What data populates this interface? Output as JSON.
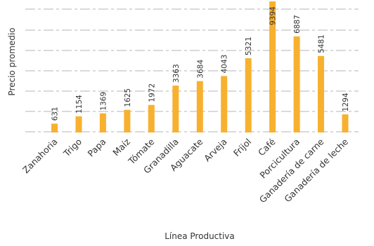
{
  "chart_data": {
    "type": "bar",
    "title": "",
    "xlabel": "Línea Productiva",
    "ylabel": "Precio promedio",
    "ylim": [
      0,
      9394
    ],
    "grid": true,
    "legend": "none",
    "bar_color": "#F7B12F",
    "grid_color": "#B5B5B5",
    "categories": [
      "Zanahoria",
      "Trigo",
      "Papa",
      "Maíz",
      "Tómate",
      "Granadilla",
      "Aguacate",
      "Arveja",
      "Frijol",
      "Café",
      "Porcicultura",
      "Ganadería de carne",
      "Ganadería de leche"
    ],
    "values": [
      631,
      1154,
      1369,
      1625,
      1972,
      3363,
      3684,
      4043,
      5321,
      9394,
      6887,
      5481,
      1294
    ]
  }
}
